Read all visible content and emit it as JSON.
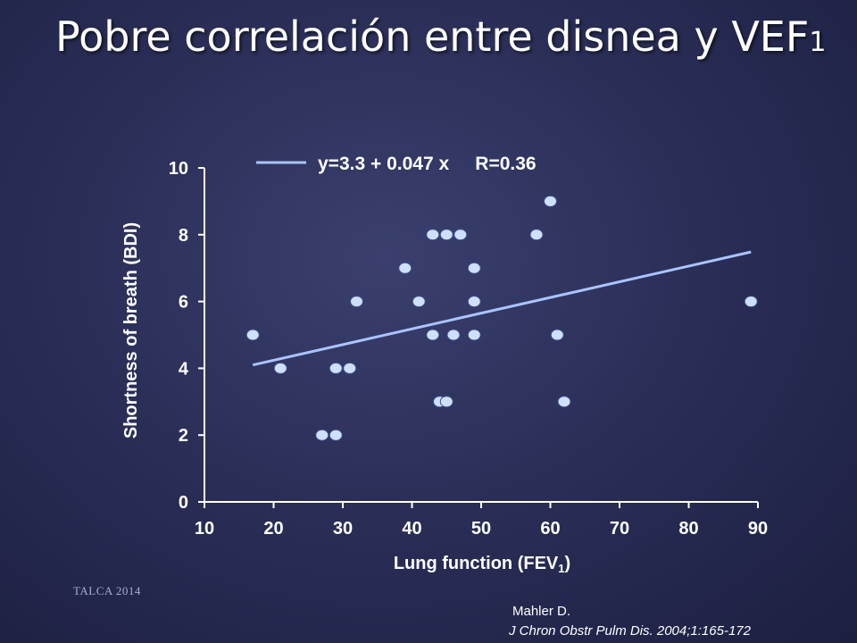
{
  "slide": {
    "title": "Pobre correlación entre disnea y VEF",
    "title_sub": "1",
    "footer_left": "TALCA 2014",
    "citation_author": "Mahler D.",
    "citation_journal": "J Chron Obstr Pulm Dis. 2004;1:165-172"
  },
  "chart_data": {
    "type": "scatter",
    "title": "",
    "xlabel": "Lung function (FEV",
    "xlabel_sub": "1",
    "xlabel_suffix": ")",
    "ylabel": "Shortness of breath (BDI)",
    "xlim": [
      10,
      90
    ],
    "ylim": [
      0,
      10
    ],
    "xticks": [
      10,
      20,
      30,
      40,
      50,
      60,
      70,
      80,
      90
    ],
    "yticks": [
      0,
      2,
      4,
      6,
      8,
      10
    ],
    "grid": false,
    "colors": {
      "point": "#cfe0ff",
      "point_stroke": "#3d4f8f",
      "fit_line": "#a9c4ff",
      "axis": "#ffffff"
    },
    "legend": {
      "label": "y=3.3 + 0.047 x     R=0.36",
      "position": "top"
    },
    "fit_line": {
      "intercept": 3.3,
      "slope": 0.047,
      "x_start": 17,
      "x_end": 89
    },
    "points": [
      [
        17,
        5
      ],
      [
        21,
        4
      ],
      [
        27,
        2
      ],
      [
        29,
        2
      ],
      [
        29,
        4
      ],
      [
        31,
        4
      ],
      [
        32,
        6
      ],
      [
        39,
        7
      ],
      [
        41,
        6
      ],
      [
        43,
        8
      ],
      [
        43,
        5
      ],
      [
        44,
        3
      ],
      [
        45,
        8
      ],
      [
        45,
        3
      ],
      [
        46,
        5
      ],
      [
        47,
        8
      ],
      [
        49,
        7
      ],
      [
        49,
        6
      ],
      [
        49,
        5
      ],
      [
        58,
        8
      ],
      [
        60,
        9
      ],
      [
        61,
        5
      ],
      [
        62,
        3
      ],
      [
        89,
        6
      ]
    ]
  }
}
